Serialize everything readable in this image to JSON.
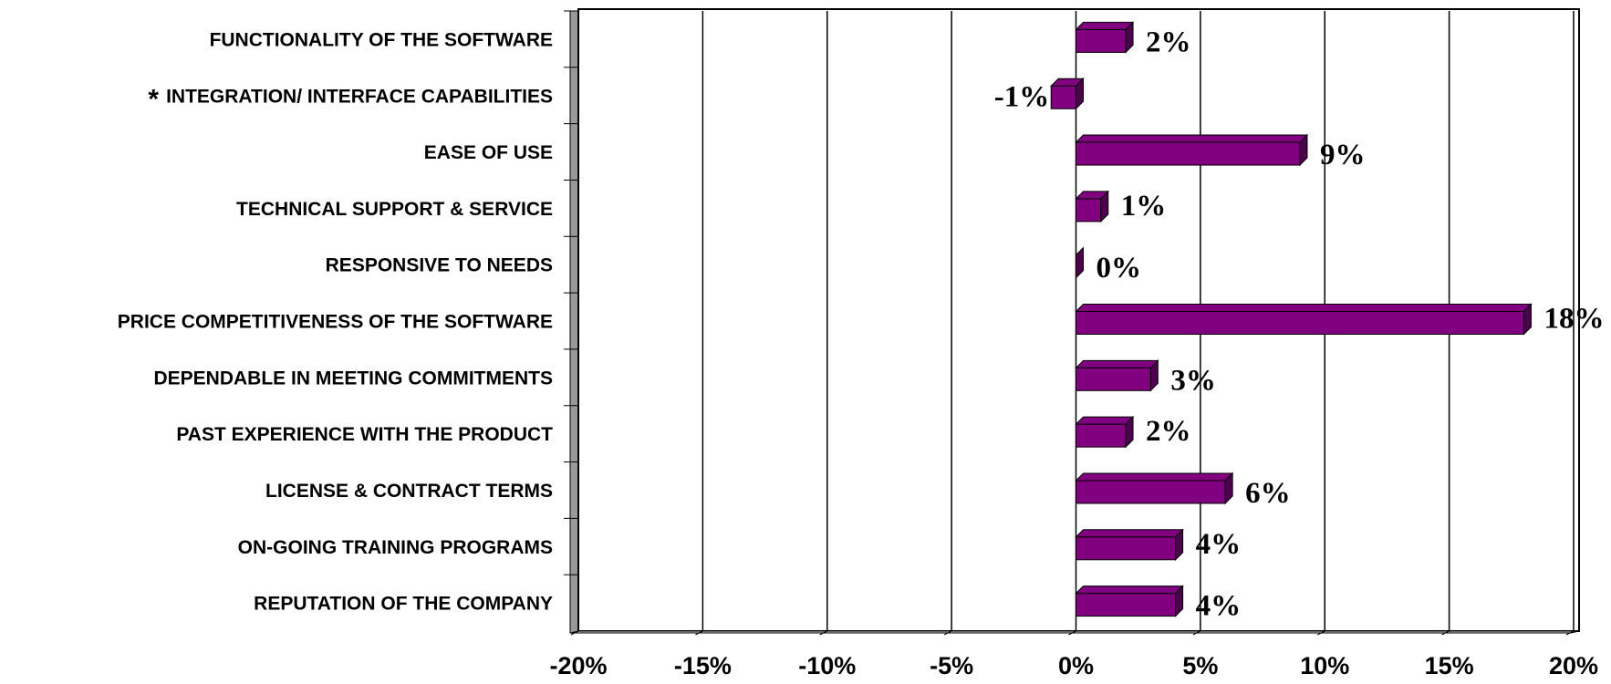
{
  "chart_data": {
    "type": "bar",
    "orientation": "horizontal",
    "categories": [
      "FUNCTIONALITY OF THE SOFTWARE",
      "INTEGRATION/ INTERFACE CAPABILITIES",
      "EASE OF USE",
      "TECHNICAL SUPPORT & SERVICE",
      "RESPONSIVE TO NEEDS",
      "PRICE COMPETITIVENESS OF THE SOFTWARE",
      "DEPENDABLE IN MEETING COMMITMENTS",
      "PAST EXPERIENCE WITH THE PRODUCT",
      "LICENSE & CONTRACT TERMS",
      "ON-GOING TRAINING PROGRAMS",
      "REPUTATION OF THE COMPANY"
    ],
    "values": [
      2,
      -1,
      9,
      1,
      0,
      18,
      3,
      2,
      6,
      4,
      4
    ],
    "value_labels": [
      "2%",
      "-1%",
      "9%",
      "1%",
      "0%",
      "18%",
      "3%",
      "2%",
      "6%",
      "4%",
      "4%"
    ],
    "color": "#800080",
    "annotations": [
      {
        "text": "*",
        "category": "INTEGRATION/ INTERFACE CAPABILITIES",
        "color": "#ff0000"
      }
    ],
    "xlim": [
      -20,
      20
    ],
    "xticks": [
      {
        "value": -20,
        "label": "-20%"
      },
      {
        "value": -15,
        "label": "-15%"
      },
      {
        "value": -10,
        "label": "-10%"
      },
      {
        "value": -5,
        "label": "-5%"
      },
      {
        "value": 0,
        "label": "0%"
      },
      {
        "value": 5,
        "label": "5%"
      },
      {
        "value": 10,
        "label": "10%"
      },
      {
        "value": 15,
        "label": "15%"
      },
      {
        "value": 20,
        "label": "20%"
      }
    ],
    "grid": true
  }
}
